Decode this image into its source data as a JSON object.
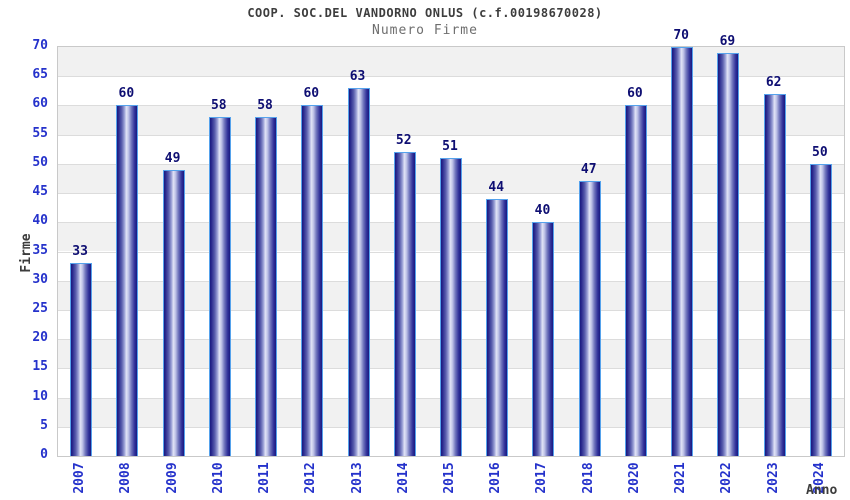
{
  "chart_data": {
    "type": "bar",
    "title": "COOP. SOC.DEL VANDORNO ONLUS (c.f.00198670028)",
    "subtitle": "Numero Firme",
    "xlabel": "Anno",
    "ylabel": "Firme",
    "categories": [
      "2007",
      "2008",
      "2009",
      "2010",
      "2011",
      "2012",
      "2013",
      "2014",
      "2015",
      "2016",
      "2017",
      "2018",
      "2020",
      "2021",
      "2022",
      "2023",
      "2024"
    ],
    "values": [
      33,
      60,
      49,
      58,
      58,
      60,
      63,
      52,
      51,
      44,
      40,
      47,
      60,
      70,
      69,
      62,
      50
    ],
    "ylim": [
      0,
      70
    ],
    "ytick_step": 5,
    "yticks": [
      0,
      5,
      10,
      15,
      20,
      25,
      30,
      35,
      40,
      45,
      50,
      55,
      60,
      65,
      70
    ],
    "grid": true,
    "legend": "none",
    "value_labels_shown": true
  },
  "colors": {
    "tick_label_blue": "#2532cb",
    "bar_value_navy": "#0e0e72",
    "bar_border_lightblue": "#55a2ec",
    "bar_edge_navy": "#191980",
    "bar_mid_periwinkle": "#9ba0d6",
    "bar_center_light": "#e2e4f6",
    "band_gray": "#f1f1f1",
    "band_white": "#ffffff",
    "gridline_gray": "#dcdcdc",
    "title_color": "#3d3d3d",
    "subtitle_color": "#6e6e6e",
    "axis_title_color": "#3c3c3c"
  }
}
